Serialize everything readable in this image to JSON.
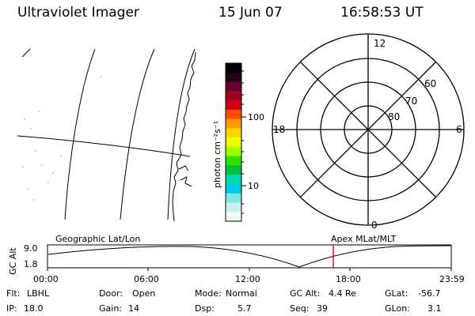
{
  "header": {
    "instrument": "Ultraviolet Imager",
    "date": "15 Jun 07",
    "time": "16:58:53 UT"
  },
  "colorbar": {
    "unit_label": "photon cm⁻²s⁻¹",
    "ticks": [
      "100",
      "10"
    ],
    "colors": [
      "#000000",
      "#2a0018",
      "#640030",
      "#a00020",
      "#d0001a",
      "#ff4a00",
      "#ff9a00",
      "#ffd400",
      "#e8ff00",
      "#9cff00",
      "#2ee000",
      "#00c040",
      "#00d8b0",
      "#00c8e8",
      "#7ee6e6",
      "#c8f2f2",
      "#f2fbfb"
    ]
  },
  "polar_plot": {
    "mlt_labels": [
      "12",
      "18",
      "6",
      "0"
    ],
    "lat_labels": [
      "60",
      "70",
      "80"
    ]
  },
  "orbit_panel": {
    "left_label": "Geographic Lat/Lon",
    "right_label": "Apex MLat/MLT",
    "y_axis_label": "GC Alt",
    "y_ticks": [
      "9.0",
      "1.8"
    ],
    "x_ticks": [
      "00:00",
      "06:00",
      "12:00",
      "18:00",
      "23:59"
    ],
    "marker_color": "#e00000"
  },
  "footer": {
    "row1": [
      {
        "label": "Flt:",
        "value": "LBHL"
      },
      {
        "label": "Door:",
        "value": "Open"
      },
      {
        "label": "Mode:",
        "value": "Normal"
      },
      {
        "label": "GC Alt:",
        "value": "4.4 Re"
      },
      {
        "label": "GLat:",
        "value": "-56.7"
      }
    ],
    "row2": [
      {
        "label": "IP:",
        "value": "18.0"
      },
      {
        "label": "Gain:",
        "value": "14"
      },
      {
        "label": "Dsp:",
        "value": "5.7"
      },
      {
        "label": "Seq:",
        "value": "39"
      },
      {
        "label": "GLon:",
        "value": "3.1"
      }
    ]
  }
}
